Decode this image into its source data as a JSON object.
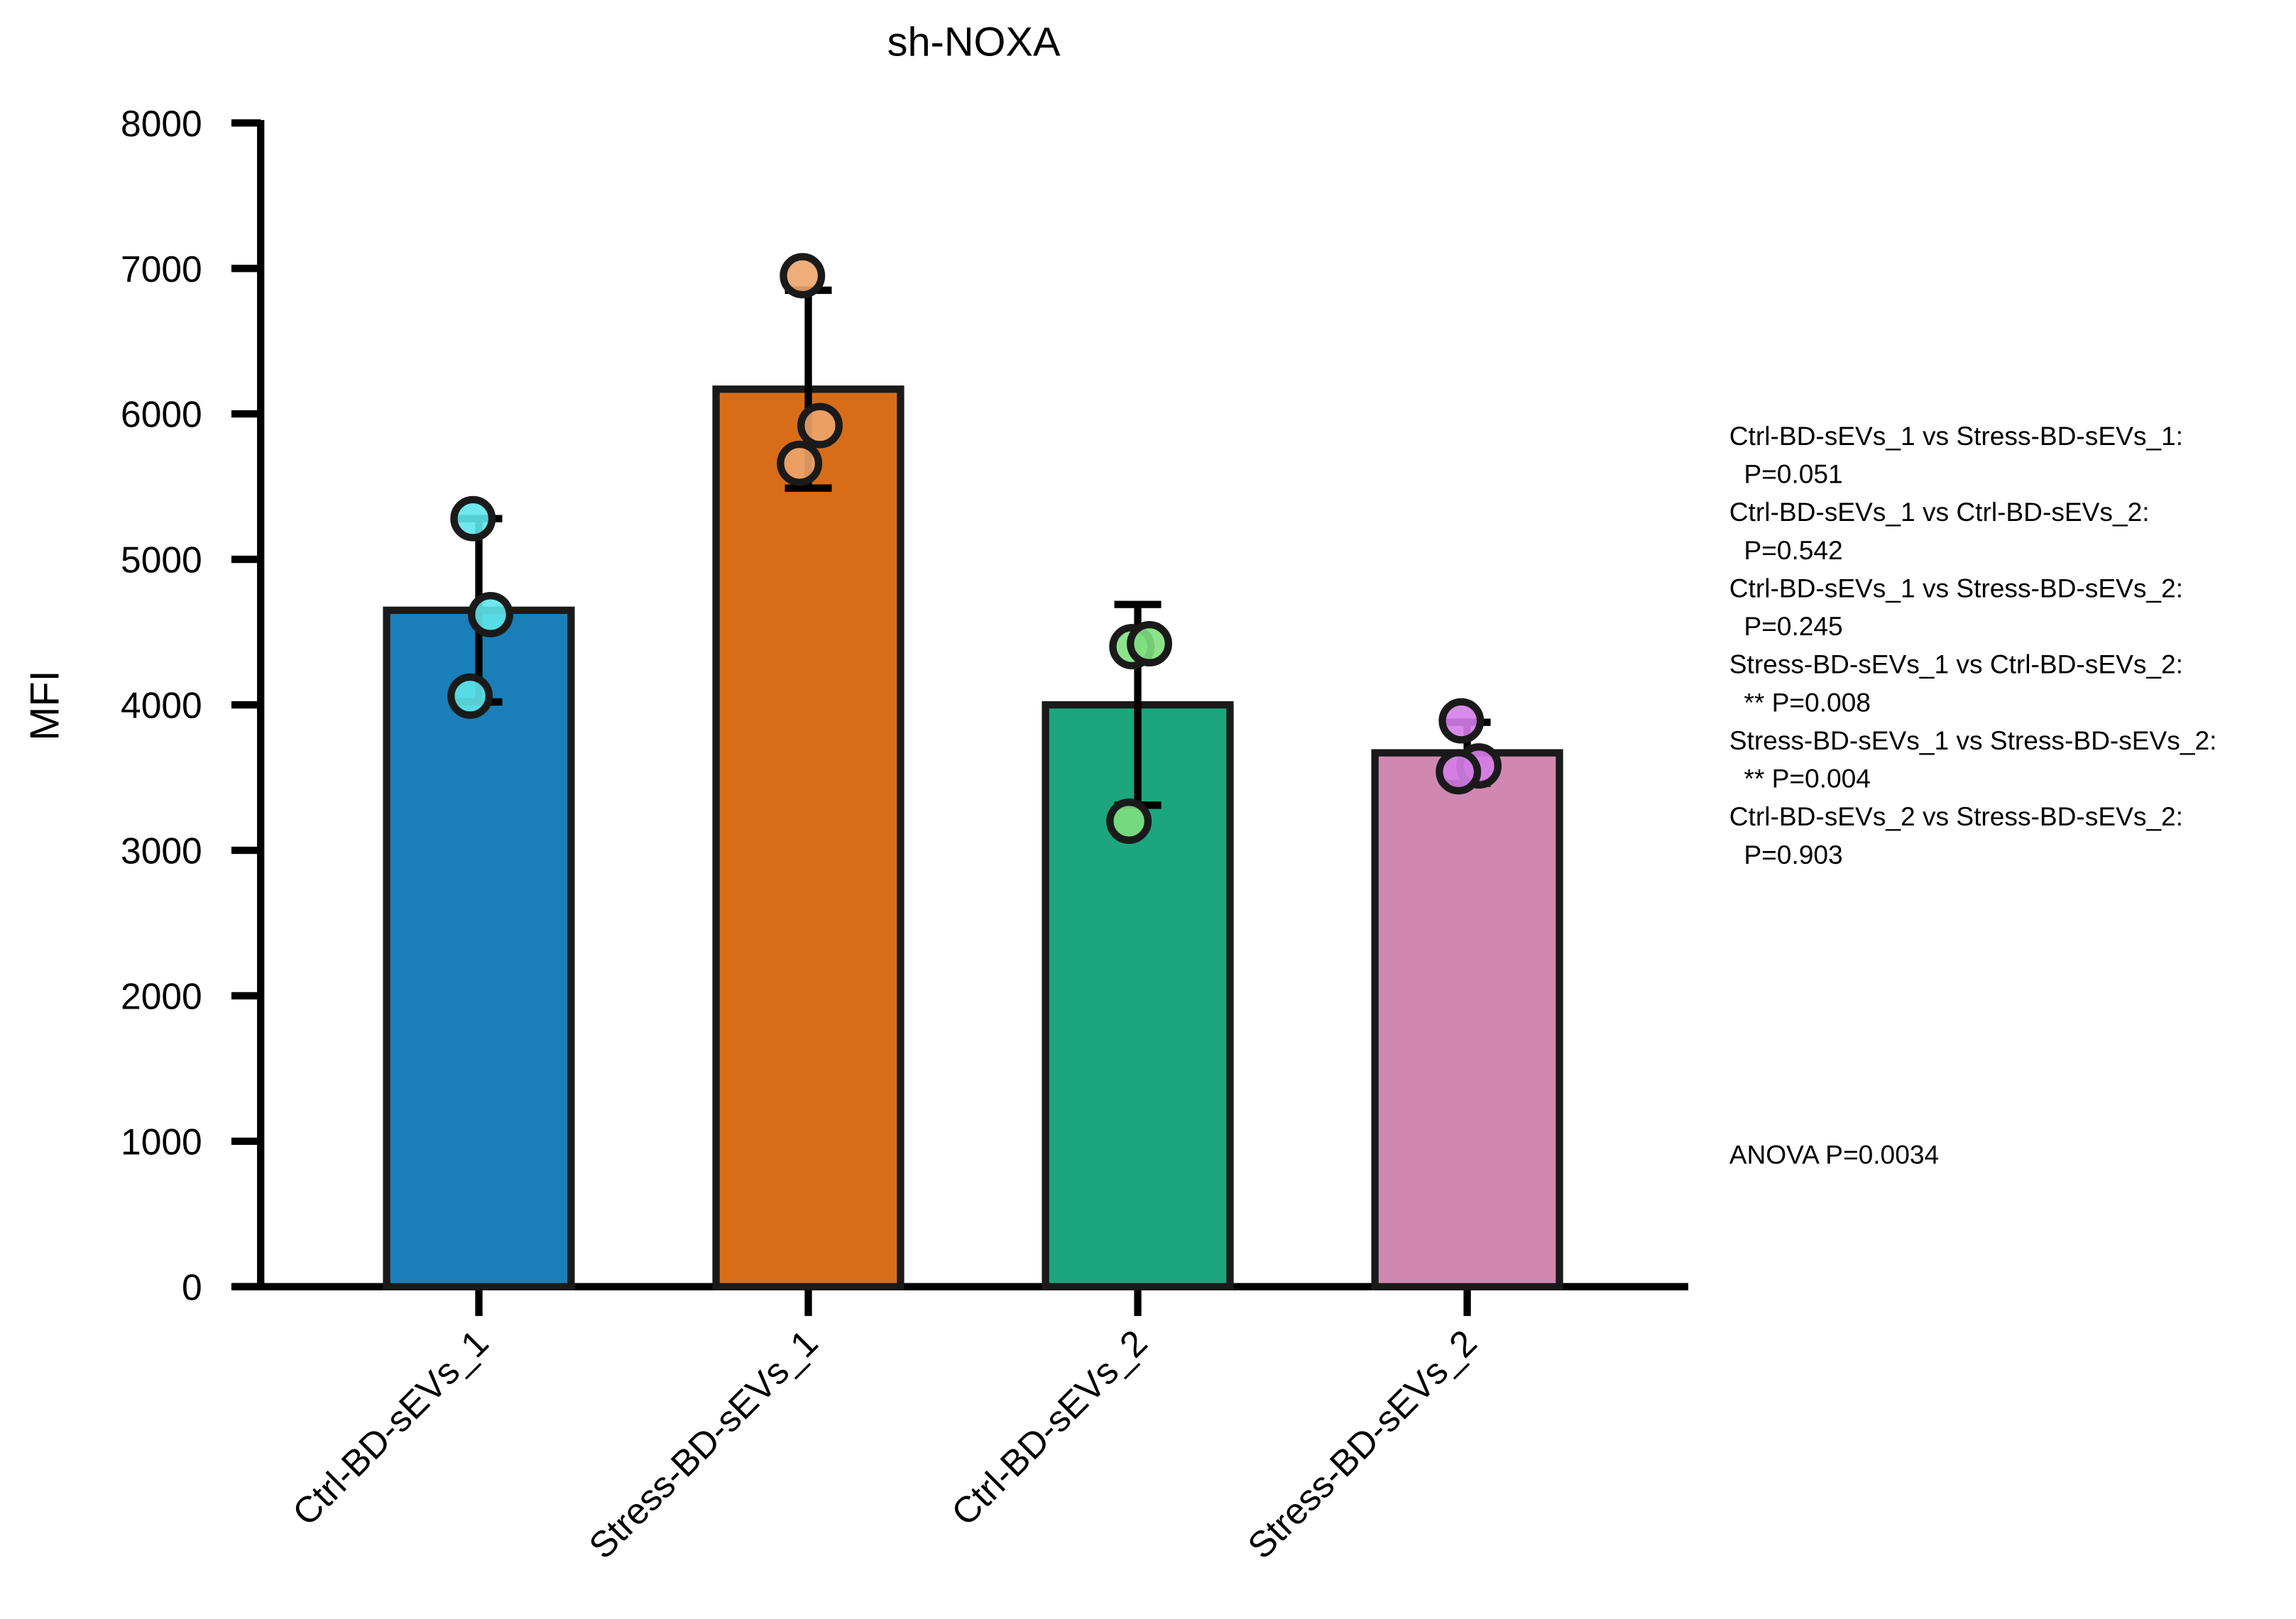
{
  "chart_data": {
    "type": "bar",
    "title": "sh-NOXA",
    "ylabel": "MFI",
    "categories": [
      "Ctrl-BD-sEVs_1",
      "Stress-BD-sEVs_1",
      "Ctrl-BD-sEVs_2",
      "Stress-BD-sEVs_2"
    ],
    "values": [
      4650,
      6170,
      4000,
      3670
    ],
    "errors": [
      630,
      680,
      690,
      210
    ],
    "points": [
      [
        5280,
        4620,
        4060
      ],
      [
        6950,
        5920,
        5660
      ],
      [
        4400,
        4420,
        3200
      ],
      [
        3890,
        3580,
        3540
      ]
    ],
    "colors": [
      "#1a7fb8",
      "#d76d18",
      "#1ba67e",
      "#d087b0"
    ],
    "point_colors": [
      "#5ee6ea",
      "#eda46a",
      "#7fe07f",
      "#d57de8"
    ],
    "ylim": [
      0,
      8000
    ],
    "yticks": [
      0,
      1000,
      2000,
      3000,
      4000,
      5000,
      6000,
      7000,
      8000
    ],
    "annotations": [
      "Ctrl-BD-sEVs_1 vs Stress-BD-sEVs_1:",
      "  P=0.051",
      "Ctrl-BD-sEVs_1 vs Ctrl-BD-sEVs_2:",
      "  P=0.542",
      "Ctrl-BD-sEVs_1 vs Stress-BD-sEVs_2:",
      "  P=0.245",
      "Stress-BD-sEVs_1 vs Ctrl-BD-sEVs_2:",
      "  ** P=0.008",
      "Stress-BD-sEVs_1 vs Stress-BD-sEVs_2:",
      "  ** P=0.004",
      "Ctrl-BD-sEVs_2 vs Stress-BD-sEVs_2:",
      "  P=0.903"
    ],
    "anova": "ANOVA P=0.0034"
  }
}
